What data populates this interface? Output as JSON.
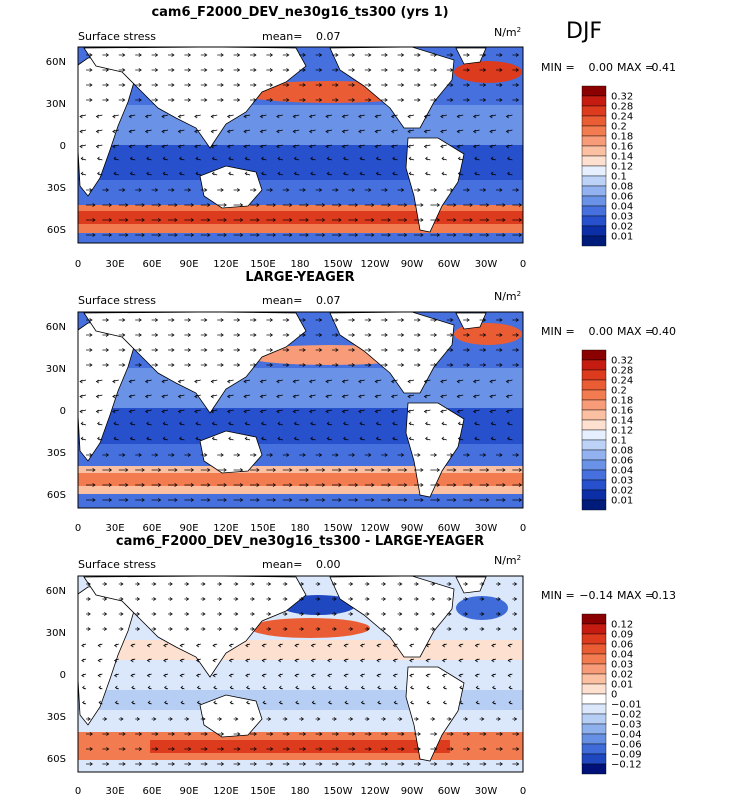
{
  "season": "DJF",
  "chart_data": [
    {
      "type": "heatmap",
      "title": "cam6_F2000_DEV_ne30g16_ts300 (yrs 1)",
      "field_label": "Surface stress",
      "mean_label": "mean=",
      "mean_value": "0.07",
      "units": "N/m",
      "units_sup": "2",
      "min_label": "MIN =",
      "min_value": "0.00",
      "max_label": "MAX =",
      "max_value": "0.41",
      "x_ticks": [
        "0",
        "30E",
        "60E",
        "90E",
        "120E",
        "150E",
        "180",
        "150W",
        "120W",
        "90W",
        "60W",
        "30W",
        "0"
      ],
      "y_ticks": [
        "60N",
        "30N",
        "0",
        "30S",
        "60S"
      ],
      "ylim": [
        -70,
        70
      ],
      "colorbar_levels": [
        "0.32",
        "0.28",
        "0.24",
        "0.2",
        "0.18",
        "0.16",
        "0.14",
        "0.12",
        "0.1",
        "0.08",
        "0.06",
        "0.04",
        "0.03",
        "0.02",
        "0.01"
      ]
    },
    {
      "type": "heatmap",
      "title": "LARGE-YEAGER",
      "field_label": "Surface stress",
      "mean_label": "mean=",
      "mean_value": "0.07",
      "units": "N/m",
      "units_sup": "2",
      "min_label": "MIN =",
      "min_value": "0.00",
      "max_label": "MAX =",
      "max_value": "0.40",
      "x_ticks": [
        "0",
        "30E",
        "60E",
        "90E",
        "120E",
        "150E",
        "180",
        "150W",
        "120W",
        "90W",
        "60W",
        "30W",
        "0"
      ],
      "y_ticks": [
        "60N",
        "30N",
        "0",
        "30S",
        "60S"
      ],
      "ylim": [
        -70,
        70
      ],
      "colorbar_levels": [
        "0.32",
        "0.28",
        "0.24",
        "0.2",
        "0.18",
        "0.16",
        "0.14",
        "0.12",
        "0.1",
        "0.08",
        "0.06",
        "0.04",
        "0.03",
        "0.02",
        "0.01"
      ]
    },
    {
      "type": "heatmap",
      "title": "cam6_F2000_DEV_ne30g16_ts300 - LARGE-YEAGER",
      "field_label": "Surface stress",
      "mean_label": "mean=",
      "mean_value": "0.00",
      "units": "N/m",
      "units_sup": "2",
      "min_label": "MIN =",
      "min_value": "−0.14",
      "max_label": "MAX =",
      "max_value": "0.13",
      "x_ticks": [
        "0",
        "30E",
        "60E",
        "90E",
        "120E",
        "150E",
        "180",
        "150W",
        "120W",
        "90W",
        "60W",
        "30W",
        "0"
      ],
      "y_ticks": [
        "60N",
        "30N",
        "0",
        "30S",
        "60S"
      ],
      "ylim": [
        -70,
        70
      ],
      "colorbar_levels": [
        "0.12",
        "0.09",
        "0.06",
        "0.04",
        "0.03",
        "0.02",
        "0.01",
        "0",
        "−0.01",
        "−0.02",
        "−0.03",
        "−0.04",
        "−0.06",
        "−0.09",
        "−0.12"
      ]
    }
  ],
  "colors": {
    "seq": [
      "#8b0000",
      "#c51b10",
      "#dc3b1e",
      "#ea5d34",
      "#f27b50",
      "#f79b78",
      "#fbbfa2",
      "#fde0cf",
      "#e6efff",
      "#bcd2f7",
      "#92b3ef",
      "#6a92e6",
      "#4570dd",
      "#2650cc",
      "#0c2fa8",
      "#001c7a"
    ],
    "div": [
      "#8b0000",
      "#c51b10",
      "#dc3b1e",
      "#ea5d34",
      "#f27b50",
      "#f79b78",
      "#fbbfa2",
      "#fde0cf",
      "#ffffff",
      "#dbe7fb",
      "#b6cdf4",
      "#8eb0ec",
      "#6690e3",
      "#3f6cd8",
      "#1e47c0",
      "#00127a"
    ],
    "land": "#ffffff",
    "arrow": "#000000"
  }
}
